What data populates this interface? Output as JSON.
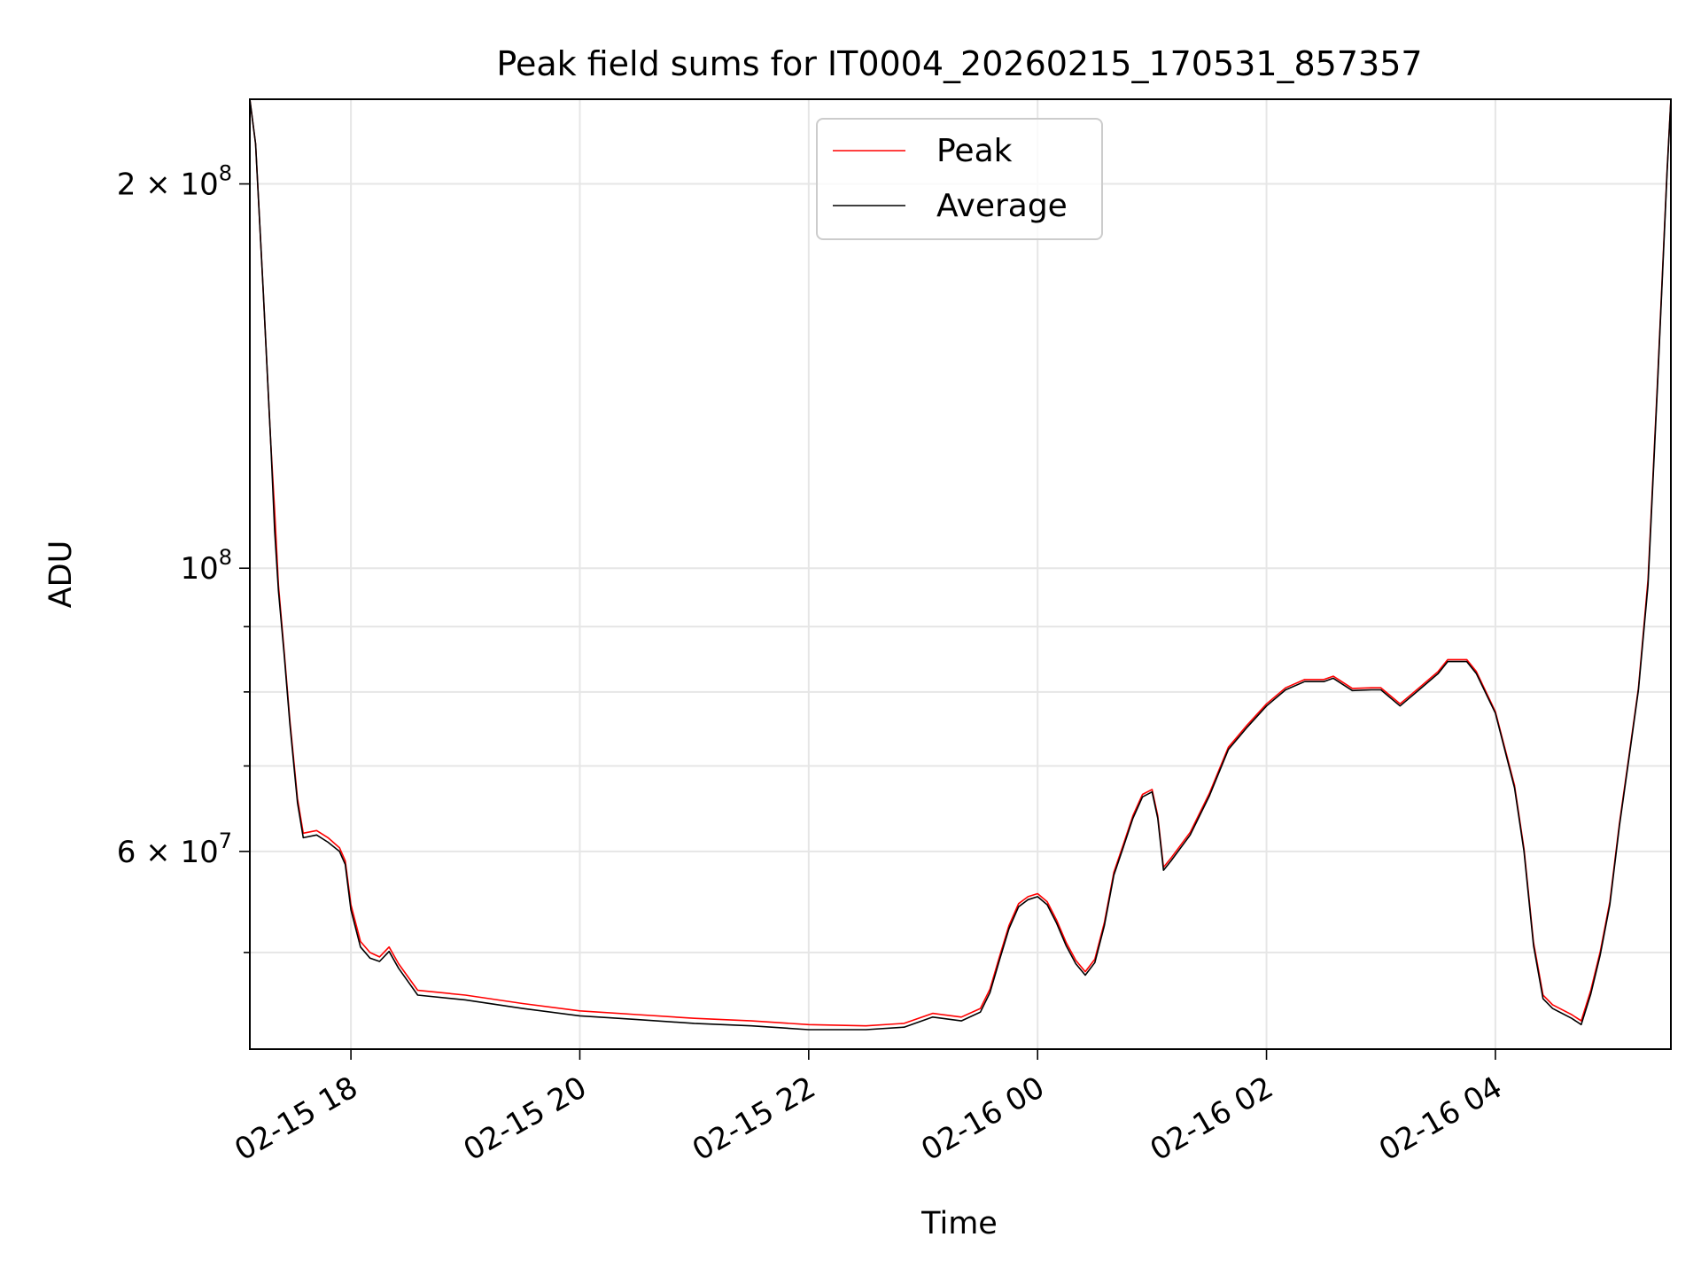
{
  "chart_data": {
    "type": "line",
    "title": "Peak field sums for IT0004_20260215_170531_857357",
    "xlabel": "Time",
    "ylabel": "ADU",
    "yscale": "log",
    "ylim": [
      42000000,
      233000000
    ],
    "xlim": [
      "2026-02-15 17:07",
      "2026-02-16 05:32"
    ],
    "grid": true,
    "legend_position": "top-center",
    "x_ticks": [
      {
        "x": "2026-02-15 18:00",
        "label": "02-15 18"
      },
      {
        "x": "2026-02-15 20:00",
        "label": "02-15 20"
      },
      {
        "x": "2026-02-15 22:00",
        "label": "02-15 22"
      },
      {
        "x": "2026-02-16 00:00",
        "label": "02-16 00"
      },
      {
        "x": "2026-02-16 02:00",
        "label": "02-16 02"
      },
      {
        "x": "2026-02-16 04:00",
        "label": "02-16 04"
      }
    ],
    "y_major_ticks": [
      {
        "y": 60000000,
        "label_base": "6 × 10",
        "label_exp": "7"
      },
      {
        "y": 100000000,
        "label_base": "10",
        "label_exp": "8"
      },
      {
        "y": 200000000,
        "label_base": "2 × 10",
        "label_exp": "8"
      }
    ],
    "y_minor_ticks": [
      50000000,
      70000000,
      80000000,
      90000000
    ],
    "series": [
      {
        "name": "Peak",
        "color": "#ff0000",
        "points": [
          [
            "2026-02-15 17:07",
            233000000
          ],
          [
            "2026-02-15 17:10",
            215000000
          ],
          [
            "2026-02-15 17:14",
            165000000
          ],
          [
            "2026-02-15 17:18",
            125000000
          ],
          [
            "2026-02-15 17:20",
            111000000
          ],
          [
            "2026-02-15 17:22",
            97000000
          ],
          [
            "2026-02-15 17:25",
            86000000
          ],
          [
            "2026-02-15 17:28",
            76000000
          ],
          [
            "2026-02-15 17:32",
            66000000
          ],
          [
            "2026-02-15 17:35",
            62000000
          ],
          [
            "2026-02-15 17:42",
            62300000
          ],
          [
            "2026-02-15 17:48",
            61500000
          ],
          [
            "2026-02-15 17:54",
            60400000
          ],
          [
            "2026-02-15 17:57",
            59000000
          ],
          [
            "2026-02-15 18:00",
            54500000
          ],
          [
            "2026-02-15 18:05",
            51000000
          ],
          [
            "2026-02-15 18:10",
            50000000
          ],
          [
            "2026-02-15 18:15",
            49600000
          ],
          [
            "2026-02-15 18:20",
            50500000
          ],
          [
            "2026-02-15 18:25",
            49000000
          ],
          [
            "2026-02-15 18:35",
            46700000
          ],
          [
            "2026-02-15 19:00",
            46300000
          ],
          [
            "2026-02-15 19:30",
            45600000
          ],
          [
            "2026-02-15 20:00",
            45000000
          ],
          [
            "2026-02-15 20:30",
            44700000
          ],
          [
            "2026-02-15 21:00",
            44400000
          ],
          [
            "2026-02-15 21:30",
            44200000
          ],
          [
            "2026-02-15 22:00",
            43900000
          ],
          [
            "2026-02-15 22:30",
            43800000
          ],
          [
            "2026-02-15 22:50",
            44000000
          ],
          [
            "2026-02-15 23:05",
            44800000
          ],
          [
            "2026-02-15 23:20",
            44500000
          ],
          [
            "2026-02-15 23:30",
            45200000
          ],
          [
            "2026-02-15 23:35",
            46800000
          ],
          [
            "2026-02-15 23:40",
            49600000
          ],
          [
            "2026-02-15 23:45",
            52500000
          ],
          [
            "2026-02-15 23:50",
            54600000
          ],
          [
            "2026-02-15 23:55",
            55300000
          ],
          [
            "2026-02-16 00:00",
            55600000
          ],
          [
            "2026-02-16 00:05",
            54800000
          ],
          [
            "2026-02-16 00:10",
            53000000
          ],
          [
            "2026-02-16 00:15",
            50900000
          ],
          [
            "2026-02-16 00:20",
            49300000
          ],
          [
            "2026-02-16 00:25",
            48300000
          ],
          [
            "2026-02-16 00:30",
            49400000
          ],
          [
            "2026-02-16 00:35",
            52800000
          ],
          [
            "2026-02-16 00:40",
            57800000
          ],
          [
            "2026-02-16 00:45",
            60800000
          ],
          [
            "2026-02-16 00:50",
            64000000
          ],
          [
            "2026-02-16 00:55",
            66500000
          ],
          [
            "2026-02-16 01:00",
            67100000
          ],
          [
            "2026-02-16 01:03",
            64000000
          ],
          [
            "2026-02-16 01:06",
            58300000
          ],
          [
            "2026-02-16 01:10",
            59300000
          ],
          [
            "2026-02-16 01:20",
            62100000
          ],
          [
            "2026-02-16 01:30",
            66600000
          ],
          [
            "2026-02-16 01:40",
            72400000
          ],
          [
            "2026-02-16 01:50",
            75400000
          ],
          [
            "2026-02-16 02:00",
            78300000
          ],
          [
            "2026-02-16 02:10",
            80600000
          ],
          [
            "2026-02-16 02:20",
            81800000
          ],
          [
            "2026-02-16 02:30",
            81800000
          ],
          [
            "2026-02-16 02:35",
            82300000
          ],
          [
            "2026-02-16 02:45",
            80500000
          ],
          [
            "2026-02-16 02:55",
            80600000
          ],
          [
            "2026-02-16 03:00",
            80600000
          ],
          [
            "2026-02-16 03:10",
            78300000
          ],
          [
            "2026-02-16 03:20",
            80600000
          ],
          [
            "2026-02-16 03:30",
            83000000
          ],
          [
            "2026-02-16 03:35",
            84800000
          ],
          [
            "2026-02-16 03:45",
            84800000
          ],
          [
            "2026-02-16 03:50",
            83000000
          ],
          [
            "2026-02-16 04:00",
            77200000
          ],
          [
            "2026-02-16 04:10",
            67600000
          ],
          [
            "2026-02-16 04:15",
            60300000
          ],
          [
            "2026-02-16 04:20",
            50900000
          ],
          [
            "2026-02-16 04:25",
            46300000
          ],
          [
            "2026-02-16 04:30",
            45500000
          ],
          [
            "2026-02-16 04:40",
            44700000
          ],
          [
            "2026-02-16 04:45",
            44200000
          ],
          [
            "2026-02-16 04:50",
            46700000
          ],
          [
            "2026-02-16 04:55",
            50100000
          ],
          [
            "2026-02-16 05:00",
            54800000
          ],
          [
            "2026-02-16 05:05",
            63100000
          ],
          [
            "2026-02-16 05:10",
            71200000
          ],
          [
            "2026-02-16 05:15",
            80600000
          ],
          [
            "2026-02-16 05:20",
            98000000
          ],
          [
            "2026-02-16 05:25",
            140000000
          ],
          [
            "2026-02-16 05:30",
            205000000
          ],
          [
            "2026-02-16 05:32",
            233000000
          ]
        ]
      },
      {
        "name": "Average",
        "color": "#000000",
        "points": [
          [
            "2026-02-15 17:07",
            233000000
          ],
          [
            "2026-02-15 17:10",
            215000000
          ],
          [
            "2026-02-15 17:14",
            165000000
          ],
          [
            "2026-02-15 17:18",
            125000000
          ],
          [
            "2026-02-15 17:20",
            107000000
          ],
          [
            "2026-02-15 17:22",
            96000000
          ],
          [
            "2026-02-15 17:25",
            85500000
          ],
          [
            "2026-02-15 17:28",
            75500000
          ],
          [
            "2026-02-15 17:32",
            65500000
          ],
          [
            "2026-02-15 17:35",
            61500000
          ],
          [
            "2026-02-15 17:42",
            61800000
          ],
          [
            "2026-02-15 17:48",
            61000000
          ],
          [
            "2026-02-15 17:54",
            60000000
          ],
          [
            "2026-02-15 17:57",
            58600000
          ],
          [
            "2026-02-15 18:00",
            54000000
          ],
          [
            "2026-02-15 18:05",
            50500000
          ],
          [
            "2026-02-15 18:10",
            49500000
          ],
          [
            "2026-02-15 18:15",
            49200000
          ],
          [
            "2026-02-15 18:20",
            50100000
          ],
          [
            "2026-02-15 18:25",
            48600000
          ],
          [
            "2026-02-15 18:35",
            46300000
          ],
          [
            "2026-02-15 19:00",
            45900000
          ],
          [
            "2026-02-15 19:30",
            45200000
          ],
          [
            "2026-02-15 20:00",
            44600000
          ],
          [
            "2026-02-15 20:30",
            44300000
          ],
          [
            "2026-02-15 21:00",
            44000000
          ],
          [
            "2026-02-15 21:30",
            43800000
          ],
          [
            "2026-02-15 22:00",
            43500000
          ],
          [
            "2026-02-15 22:30",
            43500000
          ],
          [
            "2026-02-15 22:50",
            43700000
          ],
          [
            "2026-02-15 23:05",
            44500000
          ],
          [
            "2026-02-15 23:20",
            44200000
          ],
          [
            "2026-02-15 23:30",
            44900000
          ],
          [
            "2026-02-15 23:35",
            46500000
          ],
          [
            "2026-02-15 23:40",
            49300000
          ],
          [
            "2026-02-15 23:45",
            52200000
          ],
          [
            "2026-02-15 23:50",
            54300000
          ],
          [
            "2026-02-15 23:55",
            55000000
          ],
          [
            "2026-02-16 00:00",
            55300000
          ],
          [
            "2026-02-16 00:05",
            54500000
          ],
          [
            "2026-02-16 00:10",
            52700000
          ],
          [
            "2026-02-16 00:15",
            50600000
          ],
          [
            "2026-02-16 00:20",
            49000000
          ],
          [
            "2026-02-16 00:25",
            48000000
          ],
          [
            "2026-02-16 00:30",
            49100000
          ],
          [
            "2026-02-16 00:35",
            52500000
          ],
          [
            "2026-02-16 00:40",
            57500000
          ],
          [
            "2026-02-16 00:45",
            60500000
          ],
          [
            "2026-02-16 00:50",
            63700000
          ],
          [
            "2026-02-16 00:55",
            66200000
          ],
          [
            "2026-02-16 01:00",
            66800000
          ],
          [
            "2026-02-16 01:03",
            63700000
          ],
          [
            "2026-02-16 01:06",
            58000000
          ],
          [
            "2026-02-16 01:10",
            59000000
          ],
          [
            "2026-02-16 01:20",
            61800000
          ],
          [
            "2026-02-16 01:30",
            66300000
          ],
          [
            "2026-02-16 01:40",
            72100000
          ],
          [
            "2026-02-16 01:50",
            75100000
          ],
          [
            "2026-02-16 02:00",
            78000000
          ],
          [
            "2026-02-16 02:10",
            80300000
          ],
          [
            "2026-02-16 02:20",
            81500000
          ],
          [
            "2026-02-16 02:30",
            81500000
          ],
          [
            "2026-02-16 02:35",
            82000000
          ],
          [
            "2026-02-16 02:45",
            80200000
          ],
          [
            "2026-02-16 02:55",
            80300000
          ],
          [
            "2026-02-16 03:00",
            80300000
          ],
          [
            "2026-02-16 03:10",
            78000000
          ],
          [
            "2026-02-16 03:20",
            80300000
          ],
          [
            "2026-02-16 03:30",
            82700000
          ],
          [
            "2026-02-16 03:35",
            84500000
          ],
          [
            "2026-02-16 03:45",
            84500000
          ],
          [
            "2026-02-16 03:50",
            82700000
          ],
          [
            "2026-02-16 04:00",
            77000000
          ],
          [
            "2026-02-16 04:10",
            67300000
          ],
          [
            "2026-02-16 04:15",
            60000000
          ],
          [
            "2026-02-16 04:20",
            50600000
          ],
          [
            "2026-02-16 04:25",
            46000000
          ],
          [
            "2026-02-16 04:30",
            45200000
          ],
          [
            "2026-02-16 04:40",
            44400000
          ],
          [
            "2026-02-16 04:45",
            43900000
          ],
          [
            "2026-02-16 04:50",
            46400000
          ],
          [
            "2026-02-16 04:55",
            49800000
          ],
          [
            "2026-02-16 05:00",
            54500000
          ],
          [
            "2026-02-16 05:05",
            62800000
          ],
          [
            "2026-02-16 05:10",
            70900000
          ],
          [
            "2026-02-16 05:15",
            80300000
          ],
          [
            "2026-02-16 05:20",
            97000000
          ],
          [
            "2026-02-16 05:25",
            139000000
          ],
          [
            "2026-02-16 05:30",
            204000000
          ],
          [
            "2026-02-16 05:32",
            233000000
          ]
        ]
      }
    ]
  }
}
